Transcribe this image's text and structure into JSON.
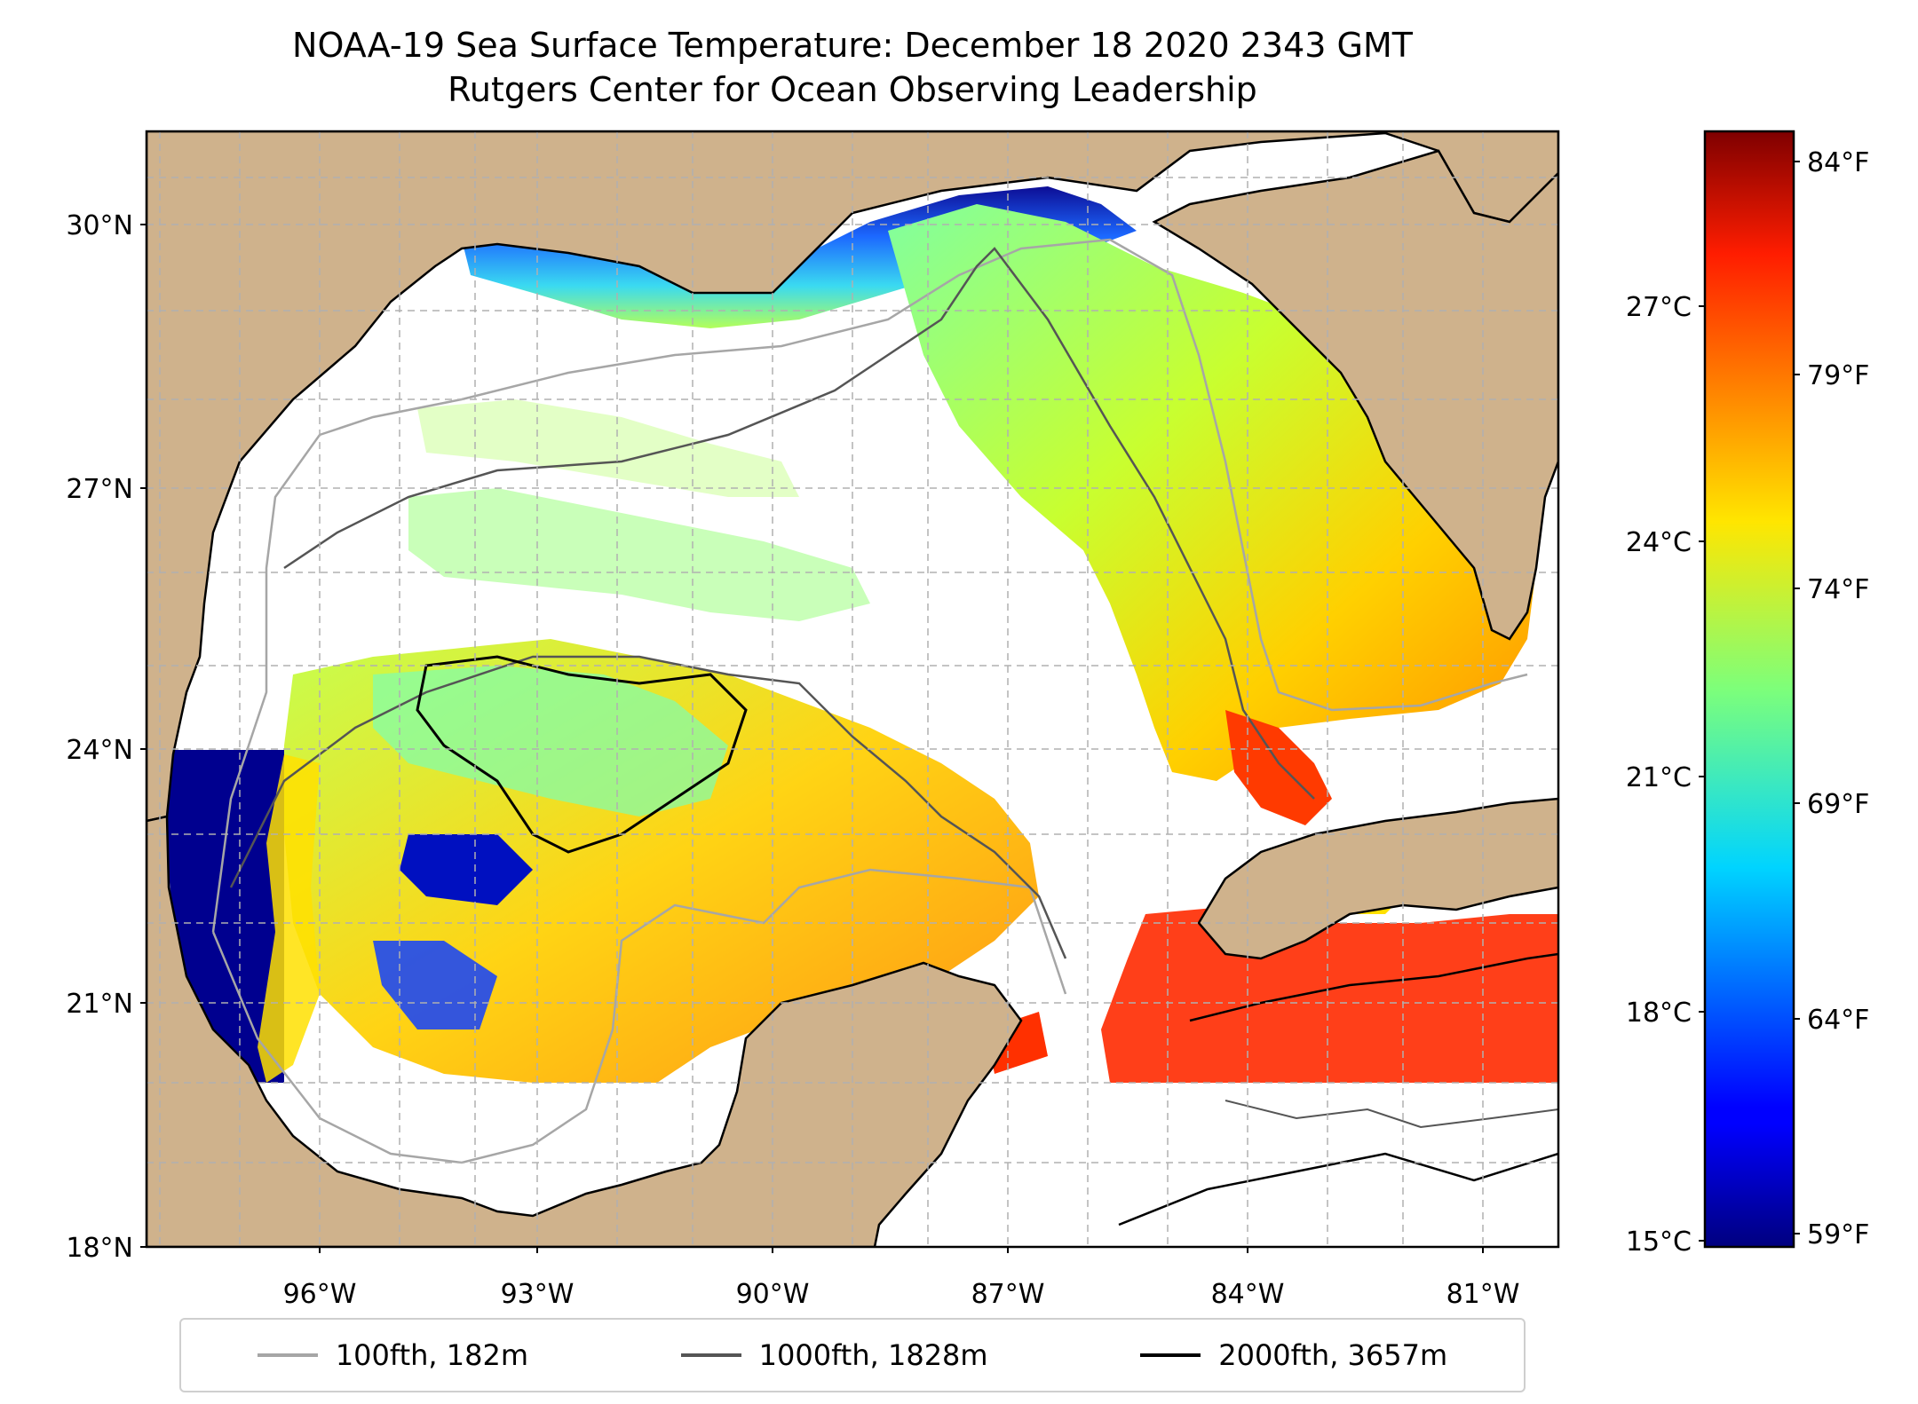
{
  "title": {
    "line1": "NOAA-19 Sea Surface Temperature: December 18 2020 2343 GMT",
    "line2": "Rutgers Center for Ocean Observing Leadership"
  },
  "map": {
    "lat_ticks": [
      "30°N",
      "27°N",
      "24°N",
      "21°N",
      "18°N"
    ],
    "lon_ticks": [
      "96°W",
      "93°W",
      "90°W",
      "87°W",
      "84°W",
      "81°W"
    ],
    "land_color": "#cfb28c",
    "grid": "dashed",
    "lon_range": [
      -98.3,
      -80.7
    ],
    "lat_range": [
      18,
      31.1
    ]
  },
  "colorbar": {
    "celsius_ticks": [
      "27°C",
      "24°C",
      "21°C",
      "18°C",
      "15°C"
    ],
    "fahrenheit_ticks": [
      "84°F",
      "79°F",
      "74°F",
      "69°F",
      "64°F",
      "59°F"
    ],
    "colormap": "jet",
    "range_c": [
      15,
      29.2
    ]
  },
  "legend": {
    "items": [
      {
        "label": "100fth, 182m",
        "color": "#a6a6a6"
      },
      {
        "label": "1000fth, 1828m",
        "color": "#555555"
      },
      {
        "label": "2000fth, 3657m",
        "color": "#000000"
      }
    ]
  }
}
